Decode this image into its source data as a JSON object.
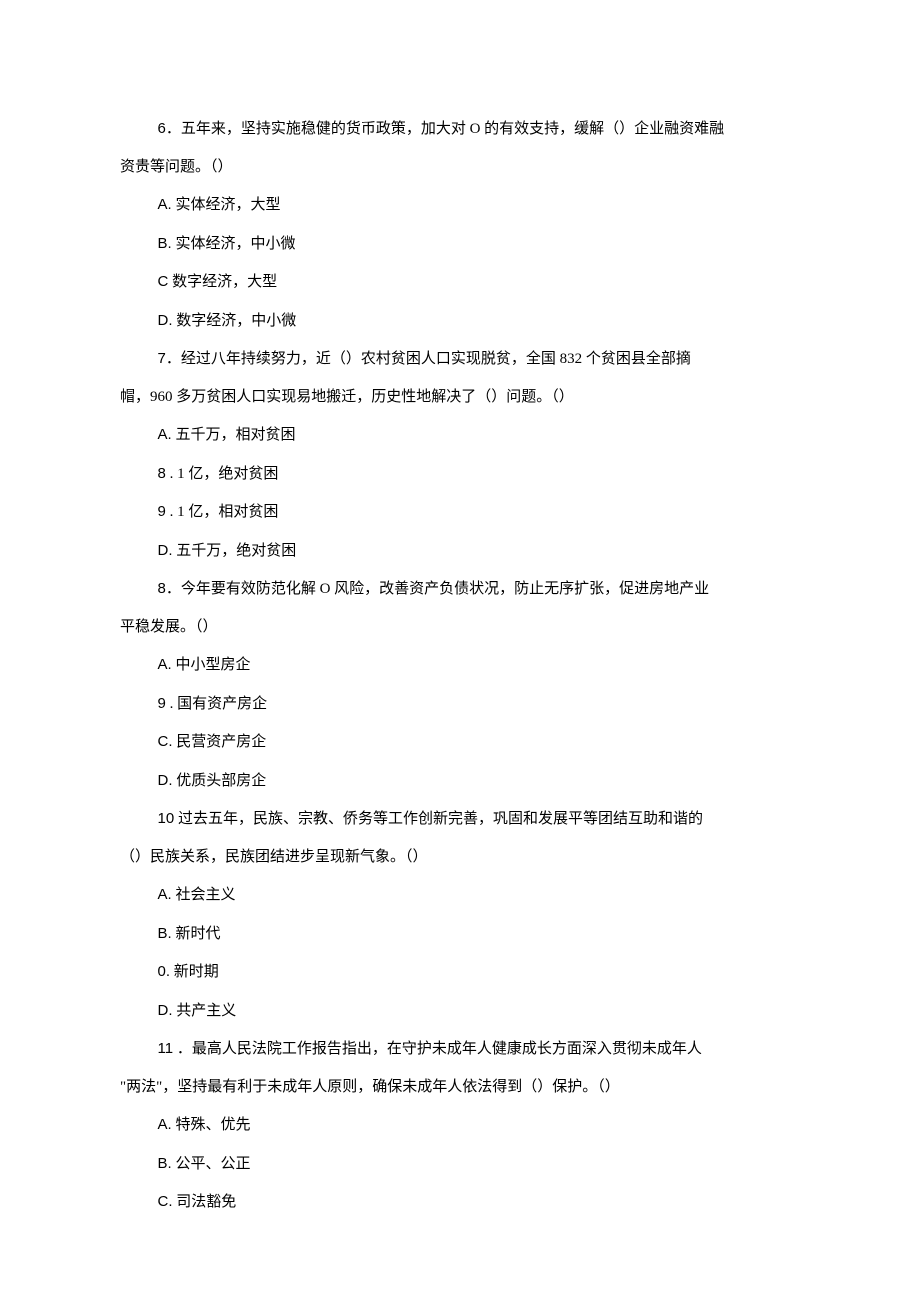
{
  "questions": [
    {
      "number": "6",
      "text_lines": [
        "．五年来，坚持实施稳健的货币政策，加大对 O 的有效支持，缓解（）企业融资难融",
        "资贵等问题。（）"
      ],
      "options": [
        {
          "label": "A.",
          "text": "实体经济，大型"
        },
        {
          "label": "B.",
          "text": "实体经济，中小微"
        },
        {
          "label": "C",
          "text": "数字经济，大型"
        },
        {
          "label": "D.",
          "text": "数字经济，中小微"
        }
      ]
    },
    {
      "number": "7",
      "text_lines": [
        "．经过八年持续努力，近（）农村贫困人口实现脱贫，全国 832 个贫困县全部摘",
        "帽，960 多万贫困人口实现易地搬迁，历史性地解决了（）问题。（）"
      ],
      "options": [
        {
          "label": "A.",
          "text": "五千万，相对贫困"
        },
        {
          "label": "8",
          "text": "  . 1 亿，绝对贫困"
        },
        {
          "label": "9",
          "text": "  . 1 亿，相对贫困"
        },
        {
          "label": "D.",
          "text": "五千万，绝对贫困"
        }
      ]
    },
    {
      "number": "8",
      "text_lines": [
        "．今年要有效防范化解 O 风险，改善资产负债状况，防止无序扩张，促进房地产业",
        "平稳发展。（）"
      ],
      "options": [
        {
          "label": "A.",
          "text": "中小型房企"
        },
        {
          "label": "9",
          "text": "  . 国有资产房企"
        },
        {
          "label": "C.",
          "text": "民营资产房企"
        },
        {
          "label": "D.",
          "text": "优质头部房企"
        }
      ]
    },
    {
      "number": "10",
      "text_lines": [
        " 过去五年，民族、宗教、侨务等工作创新完善，巩固和发展平等团结互助和谐的",
        "（）民族关系，民族团结进步呈现新气象。（）"
      ],
      "options": [
        {
          "label": "A.",
          "text": "社会主义"
        },
        {
          "label": "B.",
          "text": "新时代"
        },
        {
          "label": "0.",
          "text": "新时期"
        },
        {
          "label": "D.",
          "text": "共产主义"
        }
      ]
    },
    {
      "number": "11",
      "text_lines": [
        " ．最高人民法院工作报告指出，在守护未成年人健康成长方面深入贯彻未成年人",
        "\"两法\"，坚持最有利于未成年人原则，确保未成年人依法得到（）保护。（）"
      ],
      "options": [
        {
          "label": "A.",
          "text": "特殊、优先"
        },
        {
          "label": "B.",
          "text": "公平、公正"
        },
        {
          "label": "C.",
          "text": "司法豁免"
        }
      ]
    }
  ]
}
